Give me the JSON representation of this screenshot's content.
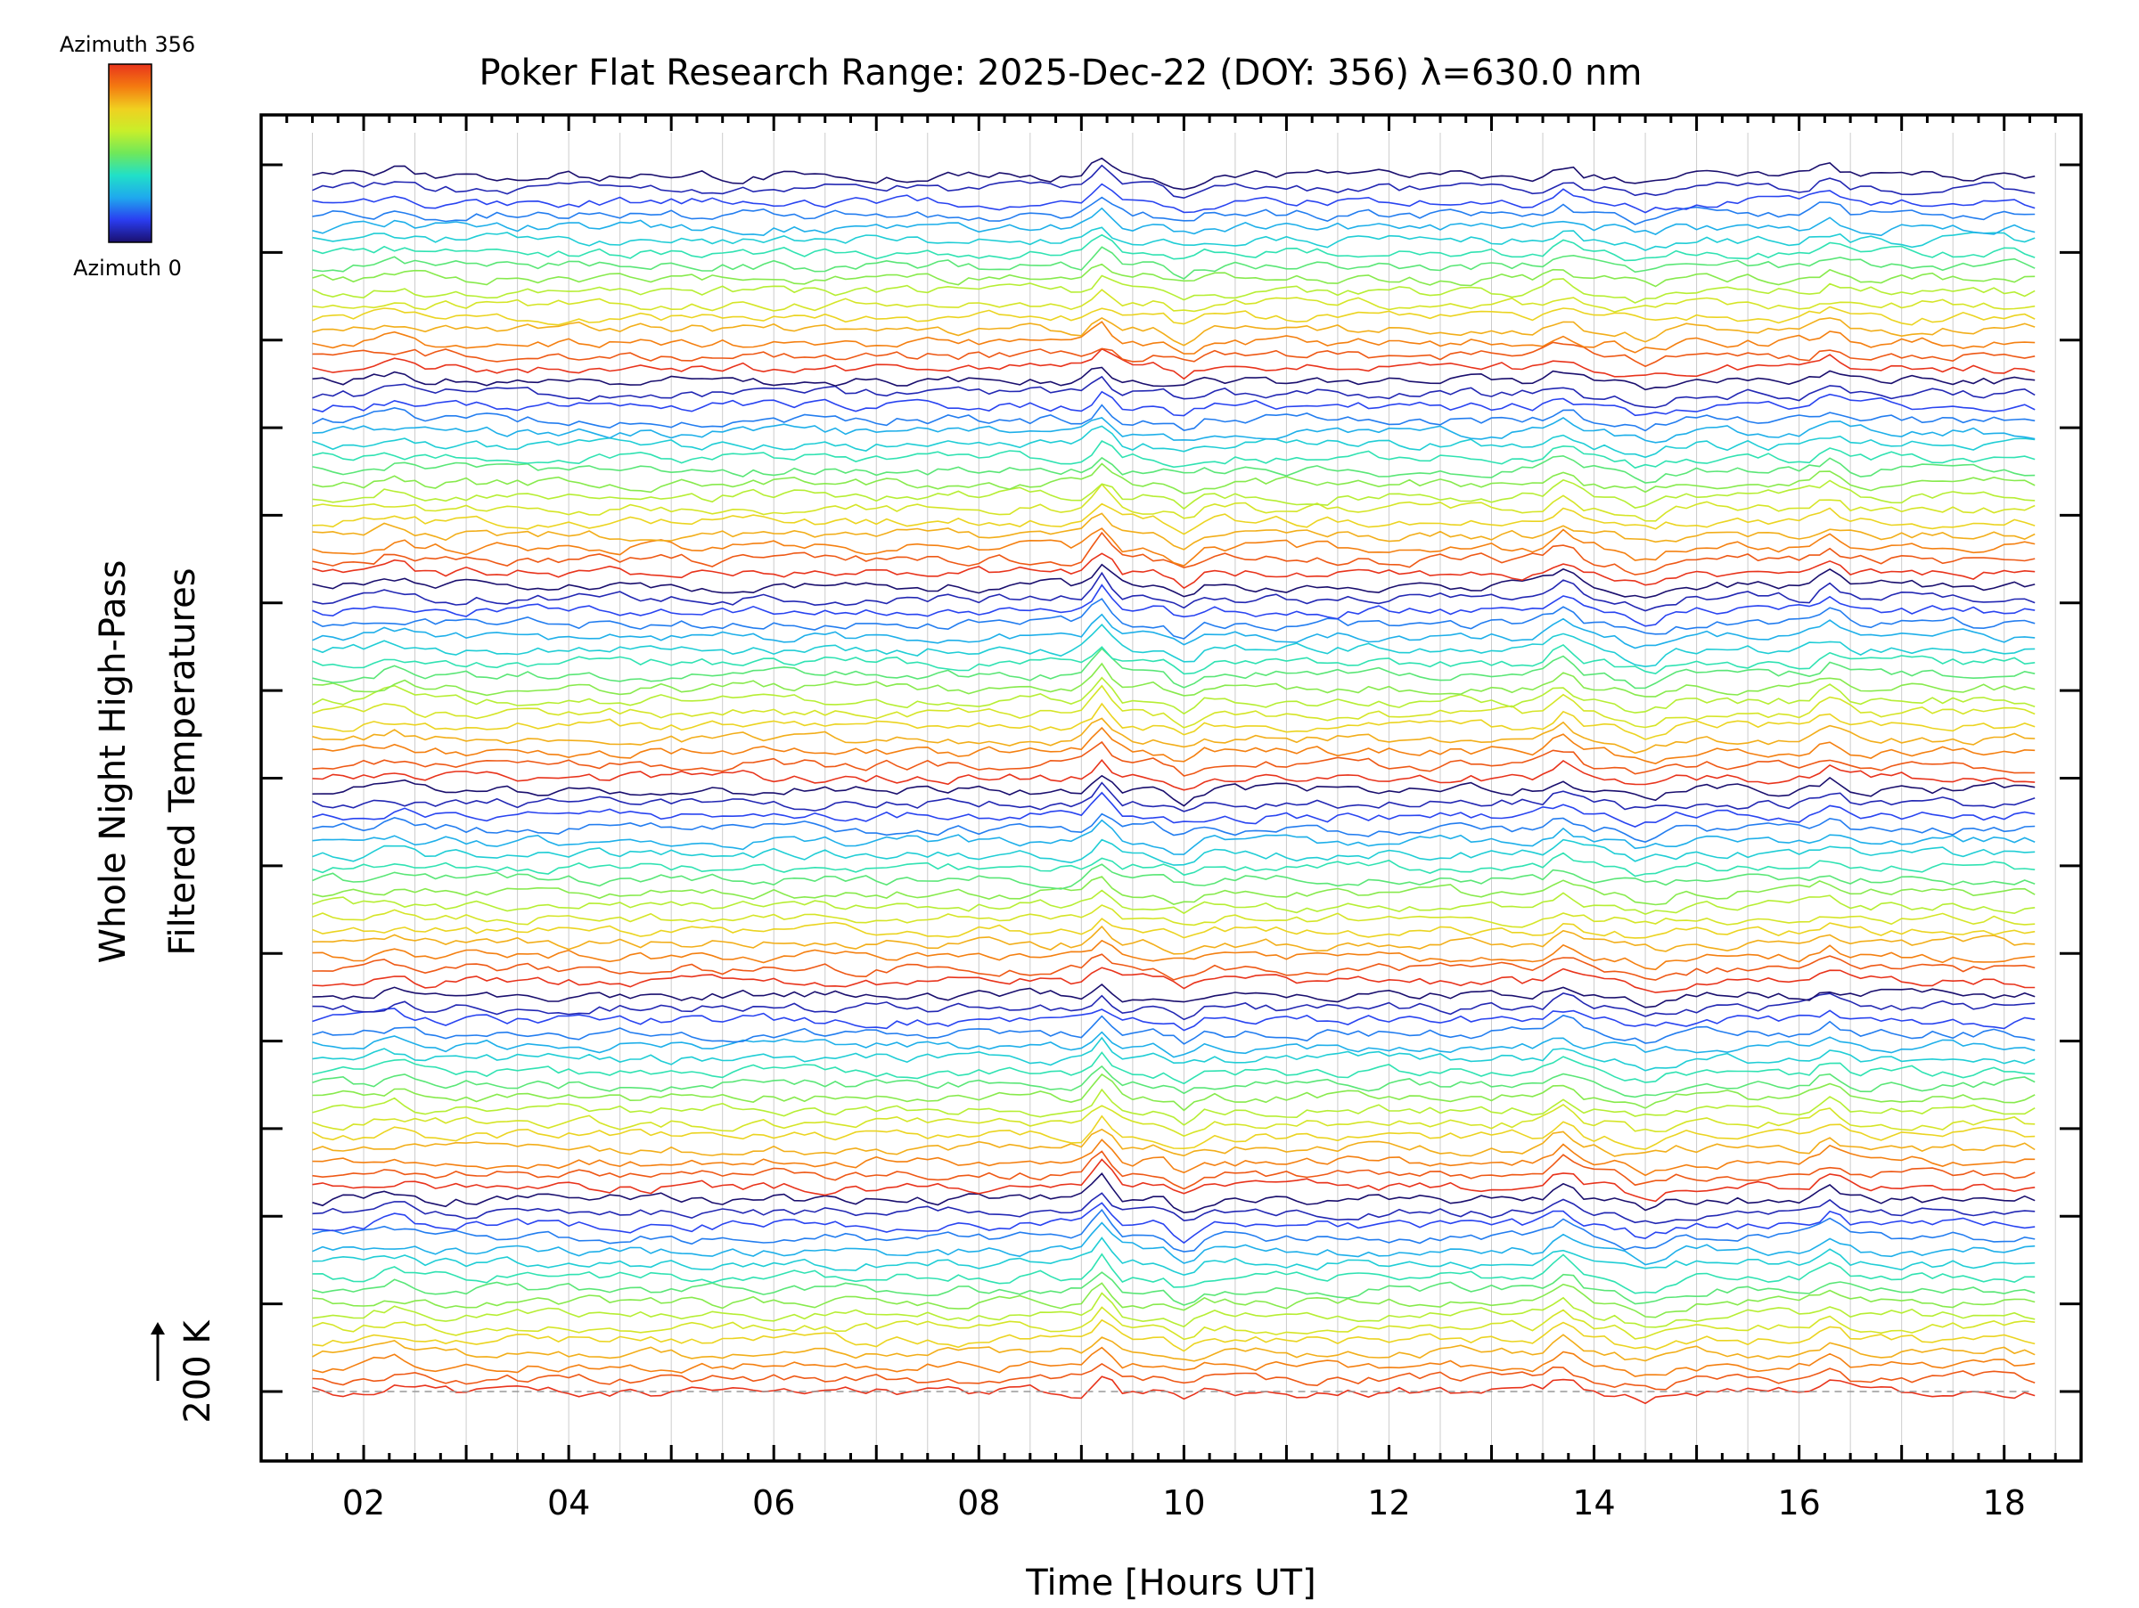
{
  "chart_data": {
    "type": "line",
    "title": "Poker Flat Research Range: 2025-Dec-22 (DOY: 356) λ=630.0 nm",
    "xlabel": "Time [Hours UT]",
    "ylabel_line1": "Whole Night High-Pass",
    "ylabel_line2": "Filtered Temperatures",
    "scale_bar_label": "200 K",
    "colorbar": {
      "top_label": "Azimuth 356",
      "bottom_label": "Azimuth 0",
      "colormap": "rainbow",
      "colors": [
        "#1a0f6e",
        "#2a3df0",
        "#1fa8ee",
        "#20e0c8",
        "#6fe85a",
        "#c8ef2a",
        "#f0d020",
        "#f47a10",
        "#e8341c"
      ]
    },
    "xlim": [
      1.0,
      18.75
    ],
    "x_start": 1.5,
    "x_end": 18.25,
    "x_step_hours": 0.1,
    "xticks": [
      2,
      4,
      6,
      8,
      10,
      12,
      14,
      16,
      18
    ],
    "xtick_labels": [
      "02",
      "04",
      "06",
      "08",
      "10",
      "12",
      "14",
      "16",
      "18"
    ],
    "minor_tick_step": 0.25,
    "y_major_ticks": 15,
    "series_count": 96,
    "baseline_color": "#999999",
    "grid_color": "#cccccc",
    "notable_features_hours": [
      9.2,
      10.0,
      13.7,
      14.5,
      16.3
    ]
  }
}
